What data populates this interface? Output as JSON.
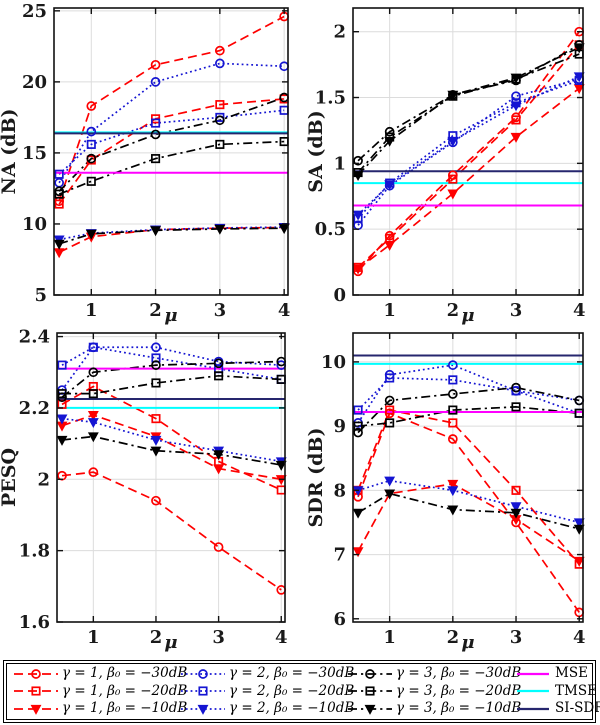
{
  "figure": {
    "x_values": [
      0.5,
      1,
      2,
      3,
      4
    ],
    "xlim": [
      0.42,
      4.06
    ],
    "x_axis_label": "μ"
  },
  "series_defs": [
    {
      "key": "g1-b30",
      "label": "γ = 1, β₀ = −30dB",
      "color": "#fe0000",
      "line": "dashed",
      "marker": "circle"
    },
    {
      "key": "g1-b20",
      "label": "γ = 1, β₀ = −20dB",
      "color": "#fe0000",
      "line": "dashed",
      "marker": "square"
    },
    {
      "key": "g1-b10",
      "label": "γ = 1, β₀ = −10dB",
      "color": "#fe0000",
      "line": "dashed",
      "marker": "triangle"
    },
    {
      "key": "g2-b30",
      "label": "γ = 2, β₀ = −30dB",
      "color": "#1515d2",
      "line": "dotted",
      "marker": "circle"
    },
    {
      "key": "g2-b20",
      "label": "γ = 2, β₀ = −20dB",
      "color": "#1515d2",
      "line": "dotted",
      "marker": "square"
    },
    {
      "key": "g2-b10",
      "label": "γ = 2, β₀ = −10dB",
      "color": "#1515d2",
      "line": "dotted",
      "marker": "triangle"
    },
    {
      "key": "g3-b30",
      "label": "γ = 3, β₀ = −30dB",
      "color": "#000000",
      "line": "dashdot",
      "marker": "circle"
    },
    {
      "key": "g3-b20",
      "label": "γ = 3, β₀ = −20dB",
      "color": "#000000",
      "line": "dashdot",
      "marker": "square"
    },
    {
      "key": "g3-b10",
      "label": "γ = 3, β₀ = −10dB",
      "color": "#000000",
      "line": "dashdot",
      "marker": "triangle"
    }
  ],
  "ref_defs": [
    {
      "key": "mse",
      "label": "MSE",
      "color": "#ff00ff"
    },
    {
      "key": "tmse",
      "label": "TMSE",
      "color": "#00ffff"
    },
    {
      "key": "si-sdr",
      "label": "SI-SDR",
      "color": "#26266e"
    }
  ],
  "chart_data": [
    {
      "id": "na",
      "type": "line",
      "title": "",
      "ylabel": "NA (dB)",
      "xlabel": "μ",
      "grid": true,
      "legend_position": "bottom",
      "x": [
        0.5,
        1,
        2,
        3,
        4
      ],
      "xticks": [
        1,
        2,
        3,
        4
      ],
      "ylim": [
        5,
        25.2
      ],
      "yticks": [
        5,
        10,
        15,
        20,
        25
      ],
      "series": [
        {
          "name": "γ = 1, β₀ = −30dB",
          "values": [
            11.6,
            18.3,
            21.2,
            22.2,
            24.6
          ]
        },
        {
          "name": "γ = 1, β₀ = −20dB",
          "values": [
            11.4,
            14.5,
            17.4,
            18.4,
            18.8
          ]
        },
        {
          "name": "γ = 1, β₀ = −10dB",
          "values": [
            8.0,
            9.1,
            9.6,
            9.7,
            9.75
          ]
        },
        {
          "name": "γ = 2, β₀ = −30dB",
          "values": [
            12.9,
            16.5,
            20.0,
            21.3,
            21.1
          ]
        },
        {
          "name": "γ = 2, β₀ = −20dB",
          "values": [
            13.5,
            15.6,
            17.1,
            17.5,
            18.0
          ]
        },
        {
          "name": "γ = 2, β₀ = −10dB",
          "values": [
            8.9,
            9.35,
            9.6,
            9.72,
            9.78
          ]
        },
        {
          "name": "γ = 3, β₀ = −30dB",
          "values": [
            12.3,
            14.6,
            16.3,
            17.3,
            18.9
          ]
        },
        {
          "name": "γ = 3, β₀ = −20dB",
          "values": [
            12.1,
            13.0,
            14.6,
            15.6,
            15.8
          ]
        },
        {
          "name": "γ = 3, β₀ = −10dB",
          "values": [
            8.6,
            9.3,
            9.55,
            9.65,
            9.7
          ]
        }
      ],
      "ref_lines": [
        {
          "name": "MSE",
          "value": 13.6
        },
        {
          "name": "TMSE",
          "value": 16.45
        },
        {
          "name": "SI-SDR",
          "value": 16.38
        }
      ]
    },
    {
      "id": "sa",
      "type": "line",
      "title": "",
      "ylabel": "SA (dB)",
      "xlabel": "μ",
      "grid": true,
      "legend_position": "bottom",
      "x": [
        0.5,
        1,
        2,
        3,
        4
      ],
      "xticks": [
        1,
        2,
        3,
        4
      ],
      "ylim": [
        0,
        2.18
      ],
      "yticks": [
        0,
        0.5,
        1,
        1.5,
        2
      ],
      "series": [
        {
          "name": "γ = 1, β₀ = −30dB",
          "values": [
            0.18,
            0.45,
            0.91,
            1.35,
            2.0
          ]
        },
        {
          "name": "γ = 1, β₀ = −20dB",
          "values": [
            0.21,
            0.43,
            0.88,
            1.33,
            1.9
          ]
        },
        {
          "name": "γ = 1, β₀ = −10dB",
          "values": [
            0.2,
            0.38,
            0.77,
            1.2,
            1.57
          ]
        },
        {
          "name": "γ = 2, β₀ = −30dB",
          "values": [
            0.53,
            0.83,
            1.16,
            1.51,
            1.64
          ]
        },
        {
          "name": "γ = 2, β₀ = −20dB",
          "values": [
            0.58,
            0.85,
            1.21,
            1.46,
            1.63
          ]
        },
        {
          "name": "γ = 2, β₀ = −10dB",
          "values": [
            0.61,
            0.84,
            1.17,
            1.44,
            1.66
          ]
        },
        {
          "name": "γ = 3, β₀ = −30dB",
          "values": [
            1.02,
            1.24,
            1.52,
            1.63,
            1.9
          ]
        },
        {
          "name": "γ = 3, β₀ = −20dB",
          "values": [
            0.93,
            1.2,
            1.51,
            1.64,
            1.83
          ]
        },
        {
          "name": "γ = 3, β₀ = −10dB",
          "values": [
            0.91,
            1.17,
            1.52,
            1.65,
            1.88
          ]
        }
      ],
      "ref_lines": [
        {
          "name": "MSE",
          "value": 0.68
        },
        {
          "name": "TMSE",
          "value": 0.85
        },
        {
          "name": "SI-SDR",
          "value": 0.94
        }
      ]
    },
    {
      "id": "pesq",
      "type": "line",
      "title": "",
      "ylabel": "PESQ",
      "xlabel": "μ",
      "grid": true,
      "legend_position": "bottom",
      "x": [
        0.5,
        1,
        2,
        3,
        4
      ],
      "xticks": [
        1,
        2,
        3,
        4
      ],
      "ylim": [
        1.6,
        2.41
      ],
      "yticks": [
        1.6,
        1.8,
        2,
        2.2,
        2.4
      ],
      "series": [
        {
          "name": "γ = 1, β₀ = −30dB",
          "values": [
            2.01,
            2.02,
            1.94,
            1.81,
            1.69
          ]
        },
        {
          "name": "γ = 1, β₀ = −20dB",
          "values": [
            2.21,
            2.26,
            2.17,
            2.05,
            1.97
          ]
        },
        {
          "name": "γ = 1, β₀ = −10dB",
          "values": [
            2.15,
            2.18,
            2.12,
            2.03,
            2.0
          ]
        },
        {
          "name": "γ = 2, β₀ = −30dB",
          "values": [
            2.25,
            2.37,
            2.37,
            2.33,
            2.32
          ]
        },
        {
          "name": "γ = 2, β₀ = −20dB",
          "values": [
            2.32,
            2.37,
            2.34,
            2.31,
            2.28
          ]
        },
        {
          "name": "γ = 2, β₀ = −10dB",
          "values": [
            2.17,
            2.16,
            2.11,
            2.08,
            2.05
          ]
        },
        {
          "name": "γ = 3, β₀ = −30dB",
          "values": [
            2.23,
            2.3,
            2.32,
            2.325,
            2.33
          ]
        },
        {
          "name": "γ = 3, β₀ = −20dB",
          "values": [
            2.24,
            2.24,
            2.27,
            2.29,
            2.28
          ]
        },
        {
          "name": "γ = 3, β₀ = −10dB",
          "values": [
            2.11,
            2.12,
            2.08,
            2.07,
            2.04
          ]
        }
      ],
      "ref_lines": [
        {
          "name": "MSE",
          "value": 2.31
        },
        {
          "name": "TMSE",
          "value": 2.2
        },
        {
          "name": "SI-SDR",
          "value": 2.225
        }
      ]
    },
    {
      "id": "sdr",
      "type": "line",
      "title": "",
      "ylabel": "SDR (dB)",
      "xlabel": "μ",
      "grid": true,
      "legend_position": "bottom",
      "x": [
        0.5,
        1,
        2,
        3,
        4
      ],
      "xticks": [
        1,
        2,
        3,
        4
      ],
      "ylim": [
        5.95,
        10.45
      ],
      "yticks": [
        6,
        7,
        8,
        9,
        10
      ],
      "series": [
        {
          "name": "γ = 1, β₀ = −30dB",
          "values": [
            7.9,
            9.2,
            8.8,
            7.5,
            6.1
          ]
        },
        {
          "name": "γ = 1, β₀ = −20dB",
          "values": [
            8.0,
            9.25,
            9.05,
            8.0,
            6.85
          ]
        },
        {
          "name": "γ = 1, β₀ = −10dB",
          "values": [
            7.05,
            7.95,
            8.1,
            7.55,
            6.9
          ]
        },
        {
          "name": "γ = 2, β₀ = −30dB",
          "values": [
            9.05,
            9.8,
            9.95,
            9.55,
            9.4
          ]
        },
        {
          "name": "γ = 2, β₀ = −20dB",
          "values": [
            9.25,
            9.75,
            9.72,
            9.55,
            9.2
          ]
        },
        {
          "name": "γ = 2, β₀ = −10dB",
          "values": [
            8.0,
            8.15,
            8.0,
            7.75,
            7.5
          ]
        },
        {
          "name": "γ = 3, β₀ = −30dB",
          "values": [
            8.9,
            9.4,
            9.5,
            9.6,
            9.4
          ]
        },
        {
          "name": "γ = 3, β₀ = −20dB",
          "values": [
            9.0,
            9.05,
            9.25,
            9.3,
            9.2
          ]
        },
        {
          "name": "γ = 3, β₀ = −10dB",
          "values": [
            7.65,
            7.95,
            7.7,
            7.65,
            7.4
          ]
        }
      ],
      "ref_lines": [
        {
          "name": "MSE",
          "value": 9.22
        },
        {
          "name": "TMSE",
          "value": 9.97
        },
        {
          "name": "SI-SDR",
          "value": 10.1
        }
      ]
    }
  ]
}
